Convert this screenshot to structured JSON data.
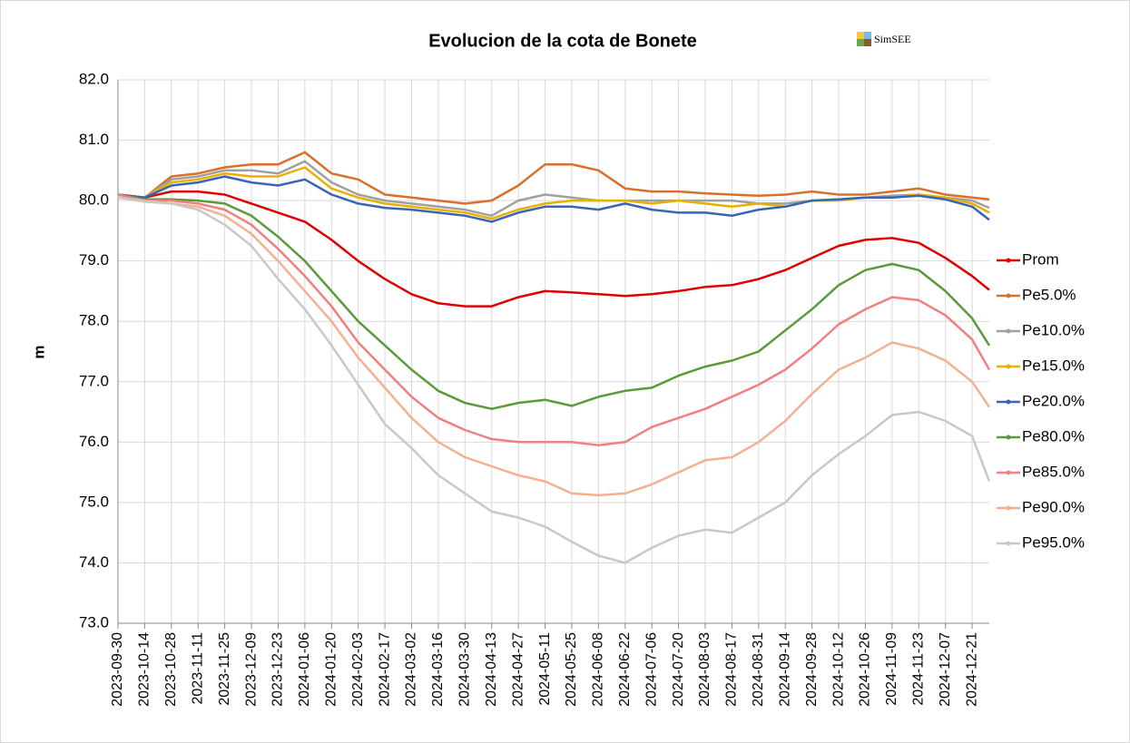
{
  "chart_data": {
    "type": "line",
    "title": "Evolucion de la cota de Bonete",
    "watermark": "SimSEE",
    "ylabel": "m",
    "x": [
      "2023-09-30",
      "2023-10-14",
      "2023-10-28",
      "2023-11-11",
      "2023-11-25",
      "2023-12-09",
      "2023-12-23",
      "2024-01-06",
      "2024-01-20",
      "2024-02-03",
      "2024-02-17",
      "2024-03-02",
      "2024-03-16",
      "2024-03-30",
      "2024-04-13",
      "2024-04-27",
      "2024-05-11",
      "2024-05-25",
      "2024-06-08",
      "2024-06-22",
      "2024-07-06",
      "2024-07-20",
      "2024-08-03",
      "2024-08-17",
      "2024-08-31",
      "2024-09-14",
      "2024-09-28",
      "2024-10-12",
      "2024-10-26",
      "2024-11-09",
      "2024-11-23",
      "2024-12-07",
      "2024-12-21",
      "2024-12-30"
    ],
    "xlim": [
      "2023-09-30",
      "2024-12-30"
    ],
    "xticks": [
      "2023-09-30",
      "2023-10-14",
      "2023-10-28",
      "2023-11-11",
      "2023-11-25",
      "2023-12-09",
      "2023-12-23",
      "2024-01-06",
      "2024-01-20",
      "2024-02-03",
      "2024-02-17",
      "2024-03-02",
      "2024-03-16",
      "2024-03-30",
      "2024-04-13",
      "2024-04-27",
      "2024-05-11",
      "2024-05-25",
      "2024-06-08",
      "2024-06-22",
      "2024-07-06",
      "2024-07-20",
      "2024-08-03",
      "2024-08-17",
      "2024-08-31",
      "2024-09-14",
      "2024-09-28",
      "2024-10-12",
      "2024-10-26",
      "2024-11-09",
      "2024-11-23",
      "2024-12-07",
      "2024-12-21"
    ],
    "ylim": [
      73,
      82
    ],
    "yticks": [
      {
        "value": 73,
        "label": "73.0"
      },
      {
        "value": 74,
        "label": "74.0"
      },
      {
        "value": 75,
        "label": "75.0"
      },
      {
        "value": 76,
        "label": "76.0"
      },
      {
        "value": 77,
        "label": "77.0"
      },
      {
        "value": 78,
        "label": "78.0"
      },
      {
        "value": 79,
        "label": "79.0"
      },
      {
        "value": 80,
        "label": "80.0"
      },
      {
        "value": 81,
        "label": "81.0"
      },
      {
        "value": 82,
        "label": "82.0"
      }
    ],
    "grid": true,
    "legend": "right",
    "series": [
      {
        "name": "Prom",
        "color": "#e00000",
        "values": [
          80.1,
          80.05,
          80.15,
          80.15,
          80.1,
          79.95,
          79.8,
          79.65,
          79.35,
          79.0,
          78.7,
          78.45,
          78.3,
          78.25,
          78.25,
          78.4,
          78.5,
          78.48,
          78.45,
          78.42,
          78.45,
          78.5,
          78.57,
          78.6,
          78.7,
          78.85,
          79.05,
          79.25,
          79.35,
          79.38,
          79.3,
          79.05,
          78.75,
          78.52
        ]
      },
      {
        "name": "Pe5.0%",
        "color": "#d8702c",
        "values": [
          80.1,
          80.05,
          80.4,
          80.45,
          80.55,
          80.6,
          80.6,
          80.8,
          80.45,
          80.35,
          80.1,
          80.05,
          80.0,
          79.95,
          80.0,
          80.25,
          80.6,
          80.6,
          80.5,
          80.2,
          80.15,
          80.15,
          80.12,
          80.1,
          80.08,
          80.1,
          80.15,
          80.1,
          80.1,
          80.15,
          80.2,
          80.1,
          80.05,
          80.02
        ]
      },
      {
        "name": "Pe10.0%",
        "color": "#a0a0a0",
        "values": [
          80.1,
          80.05,
          80.35,
          80.4,
          80.5,
          80.5,
          80.45,
          80.65,
          80.3,
          80.1,
          80.0,
          79.95,
          79.9,
          79.85,
          79.75,
          80.0,
          80.1,
          80.05,
          80.0,
          80.0,
          80.0,
          80.0,
          80.0,
          80.0,
          79.95,
          79.95,
          80.0,
          80.02,
          80.05,
          80.08,
          80.1,
          80.05,
          80.0,
          79.88
        ]
      },
      {
        "name": "Pe15.0%",
        "color": "#e8b000",
        "values": [
          80.1,
          80.05,
          80.3,
          80.35,
          80.45,
          80.4,
          80.4,
          80.55,
          80.2,
          80.05,
          79.95,
          79.9,
          79.85,
          79.8,
          79.7,
          79.85,
          79.95,
          80.0,
          80.0,
          80.0,
          79.95,
          80.0,
          79.95,
          79.9,
          79.95,
          79.9,
          80.0,
          80.0,
          80.05,
          80.05,
          80.1,
          80.05,
          79.95,
          79.8
        ]
      },
      {
        "name": "Pe20.0%",
        "color": "#3a64b4",
        "values": [
          80.1,
          80.05,
          80.25,
          80.3,
          80.4,
          80.3,
          80.25,
          80.35,
          80.1,
          79.95,
          79.88,
          79.85,
          79.8,
          79.75,
          79.65,
          79.8,
          79.9,
          79.9,
          79.85,
          79.95,
          79.85,
          79.8,
          79.8,
          79.75,
          79.85,
          79.9,
          80.0,
          80.02,
          80.05,
          80.05,
          80.08,
          80.02,
          79.9,
          79.68
        ]
      },
      {
        "name": "Pe80.0%",
        "color": "#5a9a3a",
        "values": [
          80.1,
          80.02,
          80.02,
          80.0,
          79.95,
          79.75,
          79.4,
          79.0,
          78.5,
          78.0,
          77.6,
          77.2,
          76.85,
          76.65,
          76.55,
          76.65,
          76.7,
          76.6,
          76.75,
          76.85,
          76.9,
          77.1,
          77.25,
          77.35,
          77.5,
          77.85,
          78.2,
          78.6,
          78.85,
          78.95,
          78.85,
          78.5,
          78.05,
          77.6
        ]
      },
      {
        "name": "Pe85.0%",
        "color": "#f08080",
        "values": [
          80.1,
          80.0,
          80.0,
          79.95,
          79.85,
          79.6,
          79.2,
          78.75,
          78.25,
          77.65,
          77.2,
          76.75,
          76.4,
          76.2,
          76.05,
          76.0,
          76.0,
          76.0,
          75.95,
          76.0,
          76.25,
          76.4,
          76.55,
          76.75,
          76.95,
          77.2,
          77.55,
          77.95,
          78.2,
          78.4,
          78.35,
          78.1,
          77.7,
          77.2
        ]
      },
      {
        "name": "Pe90.0%",
        "color": "#f4b090",
        "values": [
          80.05,
          80.0,
          79.95,
          79.9,
          79.75,
          79.45,
          79.0,
          78.5,
          78.0,
          77.4,
          76.9,
          76.4,
          76.0,
          75.75,
          75.6,
          75.45,
          75.35,
          75.15,
          75.12,
          75.15,
          75.3,
          75.5,
          75.7,
          75.75,
          76.0,
          76.35,
          76.8,
          77.2,
          77.4,
          77.65,
          77.55,
          77.35,
          77.0,
          76.58
        ]
      },
      {
        "name": "Pe95.0%",
        "color": "#c8c8c8",
        "values": [
          80.05,
          79.98,
          79.95,
          79.85,
          79.6,
          79.25,
          78.7,
          78.2,
          77.6,
          76.95,
          76.3,
          75.9,
          75.45,
          75.15,
          74.85,
          74.75,
          74.6,
          74.35,
          74.12,
          74.0,
          74.25,
          74.45,
          74.55,
          74.5,
          74.75,
          75.0,
          75.45,
          75.8,
          76.1,
          76.45,
          76.5,
          76.35,
          76.1,
          75.35
        ]
      }
    ]
  }
}
